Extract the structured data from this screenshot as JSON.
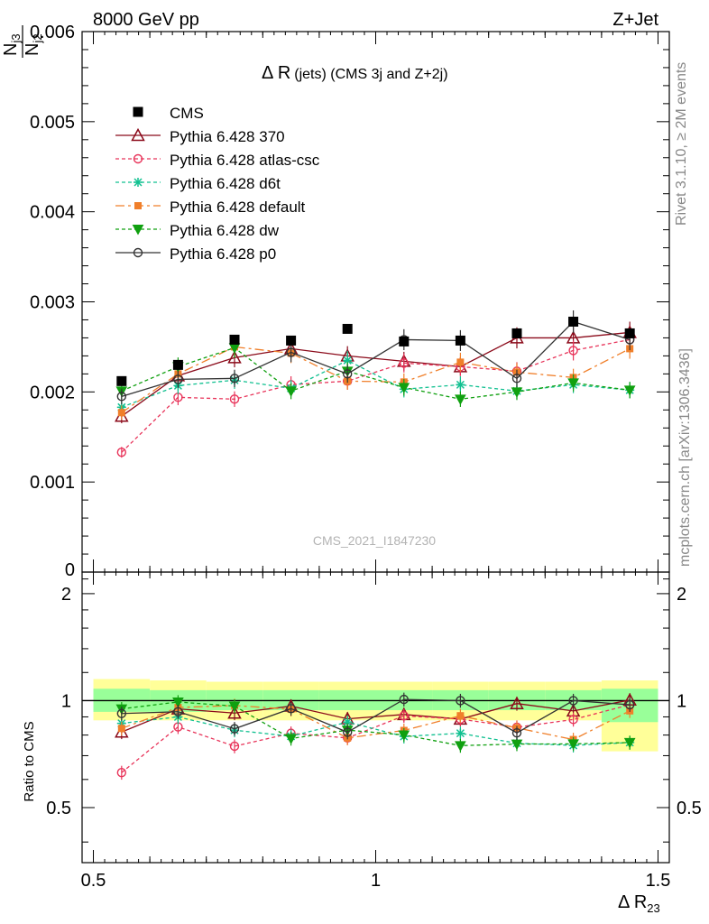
{
  "header": {
    "left": "8000 GeV pp",
    "right": "Z+Jet"
  },
  "side_texts": {
    "rivet": "Rivet 3.1.10, ≥ 2M events",
    "mcplots": "mcplots.cern.ch [arXiv:1306.3436]"
  },
  "watermark": "CMS_2021_I1847230",
  "chart_data": {
    "type": "line",
    "title": "Δ R",
    "title_suffix": "(jets) (CMS 3j and Z+2j)",
    "ylabel_num": "N",
    "ylabel_num_sub": "j3",
    "ylabel_den": "N",
    "ylabel_den_sub": "j2",
    "xlabel": "Δ R",
    "xlabel_sub": "23",
    "ratio_ylabel": "Ratio to CMS",
    "xlim": [
      0.48,
      1.52
    ],
    "ylim": [
      0,
      0.006
    ],
    "ratio_ylim": [
      0.35,
      2.3
    ],
    "ratio_log_scale": true,
    "x_ticks": [
      "0.5",
      "1",
      "1.5"
    ],
    "y_ticks": [
      "0",
      "0.001",
      "0.002",
      "0.003",
      "0.004",
      "0.005",
      "0.006"
    ],
    "ratio_y_ticks": [
      "0.5",
      "1",
      "2"
    ],
    "x": [
      0.55,
      0.65,
      0.75,
      0.85,
      0.95,
      1.05,
      1.15,
      1.25,
      1.35,
      1.45
    ],
    "data": {
      "name": "CMS",
      "values": [
        0.00212,
        0.0023,
        0.00258,
        0.00257,
        0.0027,
        0.00256,
        0.00257,
        0.00265,
        0.00278,
        0.00265
      ]
    },
    "series": [
      {
        "name": "Pythia 6.428 370",
        "color": "#8b0a1a",
        "dash": "",
        "marker": "triangle-open",
        "values": [
          0.00173,
          0.00218,
          0.00238,
          0.00248,
          0.0024,
          0.00234,
          0.00228,
          0.0026,
          0.0026,
          0.00266
        ]
      },
      {
        "name": "Pythia 6.428 atlas-csc",
        "color": "#e8345a",
        "dash": "4,3",
        "marker": "circle-open",
        "values": [
          0.00133,
          0.00194,
          0.00192,
          0.00208,
          0.00212,
          0.00232,
          0.00228,
          0.00223,
          0.00246,
          0.00258
        ]
      },
      {
        "name": "Pythia 6.428 d6t",
        "color": "#10c090",
        "dash": "4,3",
        "marker": "star",
        "values": [
          0.00183,
          0.00207,
          0.00213,
          0.00204,
          0.00235,
          0.00203,
          0.00208,
          0.00201,
          0.00208,
          0.00202
        ]
      },
      {
        "name": "Pythia 6.428 default",
        "color": "#f07f2a",
        "dash": "10,4,3,4",
        "marker": "square",
        "values": [
          0.00177,
          0.0022,
          0.0025,
          0.00243,
          0.00212,
          0.00211,
          0.00233,
          0.00222,
          0.00216,
          0.00248
        ]
      },
      {
        "name": "Pythia 6.428 dw",
        "color": "#10a010",
        "dash": "4,3",
        "marker": "triangle-down",
        "values": [
          0.00201,
          0.00228,
          0.00249,
          0.00201,
          0.00223,
          0.00205,
          0.00192,
          0.002,
          0.0021,
          0.00202
        ]
      },
      {
        "name": "Pythia 6.428 p0",
        "color": "#333333",
        "dash": "",
        "marker": "circle-open",
        "values": [
          0.00195,
          0.00214,
          0.00215,
          0.00244,
          0.0022,
          0.00258,
          0.00257,
          0.00215,
          0.00278,
          0.00258
        ]
      }
    ]
  }
}
